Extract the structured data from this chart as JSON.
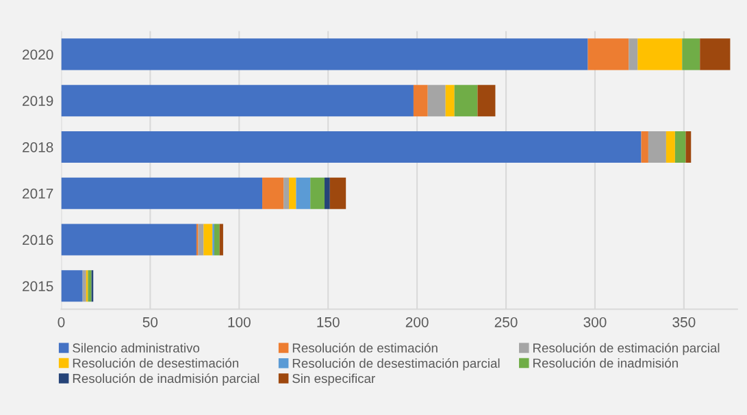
{
  "chart_data": {
    "type": "bar",
    "orientation": "horizontal",
    "stacked": true,
    "categories": [
      "2020",
      "2019",
      "2018",
      "2017",
      "2016",
      "2015"
    ],
    "series": [
      {
        "name": "Silencio administrativo",
        "color": "#4472c4",
        "values": [
          296,
          198,
          326,
          113,
          76,
          12
        ]
      },
      {
        "name": "Resolución de estimación",
        "color": "#ed7d31",
        "values": [
          23,
          8,
          4,
          12,
          1,
          0
        ]
      },
      {
        "name": "Resolución de estimación parcial",
        "color": "#a5a5a5",
        "values": [
          5,
          10,
          10,
          3,
          3,
          2
        ]
      },
      {
        "name": "Resolución de desestimación",
        "color": "#ffc000",
        "values": [
          25,
          5,
          5,
          4,
          5,
          1
        ]
      },
      {
        "name": "Resolución de desestimación parcial",
        "color": "#5b9bd5",
        "values": [
          0,
          0,
          0,
          8,
          1,
          0
        ]
      },
      {
        "name": "Resolución de inadmisión",
        "color": "#70ad47",
        "values": [
          10,
          13,
          6,
          8,
          3,
          2
        ]
      },
      {
        "name": "Resolución de inadmisión parcial",
        "color": "#264478",
        "values": [
          0,
          0,
          0,
          3,
          0,
          1
        ]
      },
      {
        "name": "Sin especificar",
        "color": "#9e480e",
        "values": [
          17,
          10,
          3,
          9,
          2,
          0
        ]
      }
    ],
    "xlim": [
      0,
      380
    ],
    "xticks": [
      0,
      50,
      100,
      150,
      200,
      250,
      300,
      350
    ],
    "grid": "x",
    "legend": "bottom"
  }
}
